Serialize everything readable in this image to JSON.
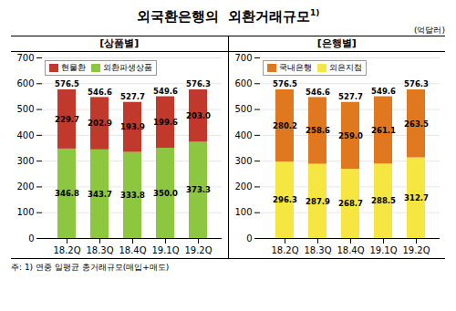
{
  "title": "외국환은행의  외환거래규모",
  "superscript": "1)",
  "unit_label": "(억달러)",
  "footnote": "주: 1) 연중 일평균 총거래규모(매입+매도)",
  "chart_data": [
    {
      "type": "bar",
      "title": "[상품별]",
      "stacked": true,
      "grid": true,
      "legend": "upper left",
      "data_labels": true,
      "categories": [
        "18.2Q",
        "18.3Q",
        "18.4Q",
        "19.1Q",
        "19.2Q"
      ],
      "series": [
        {
          "name": "외환파생상품",
          "color": "#8dc63f",
          "values": [
            346.8,
            343.7,
            333.8,
            350.0,
            373.3
          ],
          "value_labels": [
            "346.8",
            "343.7",
            "333.8",
            "350.0",
            "373.3"
          ]
        },
        {
          "name": "현물환",
          "color": "#c0392b",
          "values": [
            229.7,
            202.9,
            193.9,
            199.6,
            203.0
          ],
          "value_labels": [
            "229.7",
            "202.9",
            "193.9",
            "199.6",
            "203.0"
          ]
        }
      ],
      "totals": [
        576.5,
        546.6,
        527.7,
        549.6,
        576.3
      ],
      "ylim": [
        0,
        700
      ],
      "yticks": [
        0,
        100,
        200,
        300,
        400,
        500,
        600,
        700
      ]
    },
    {
      "type": "bar",
      "title": "[은행별]",
      "stacked": true,
      "grid": true,
      "legend": "upper left",
      "data_labels": true,
      "categories": [
        "18.2Q",
        "18.3Q",
        "18.4Q",
        "19.1Q",
        "19.2Q"
      ],
      "series": [
        {
          "name": "외은지점",
          "color": "#f5e642",
          "values": [
            296.3,
            287.9,
            268.7,
            288.5,
            312.7
          ],
          "value_labels": [
            "296.3",
            "287.9",
            "268.7",
            "288.5",
            "312.7"
          ]
        },
        {
          "name": "국내은행",
          "color": "#e07820",
          "values": [
            280.2,
            258.6,
            259.0,
            261.1,
            263.5
          ],
          "value_labels": [
            "280.2",
            "258.6",
            "259.0",
            "261.1",
            "263.5"
          ]
        }
      ],
      "totals": [
        576.5,
        546.6,
        527.7,
        549.6,
        576.3
      ],
      "ylim": [
        0,
        700
      ],
      "yticks": [
        0,
        100,
        200,
        300,
        400,
        500,
        600,
        700
      ]
    }
  ]
}
